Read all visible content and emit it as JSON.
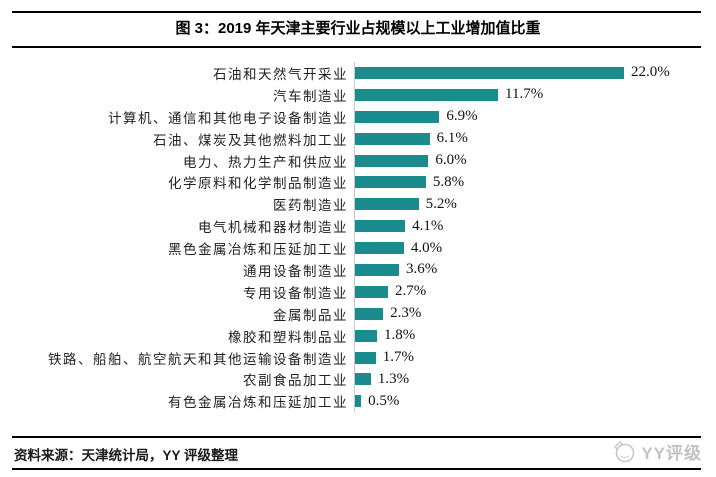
{
  "figure": {
    "title": "图 3：2019 年天津主要行业占规模以上工业增加值比重",
    "source": "资料来源：天津统计局，YY 评级整理",
    "logo_text": "YY评级"
  },
  "colors": {
    "bar": "#1b8c8d",
    "axis": "#c9c9c9",
    "rule": "#000000",
    "logo": "#c2c2c2"
  },
  "chart_data": {
    "type": "bar",
    "orientation": "horizontal",
    "title": "图 3：2019 年天津主要行业占规模以上工业增加值比重",
    "xlabel": "",
    "ylabel": "",
    "xlim": [
      0,
      25
    ],
    "grid": false,
    "legend": "none",
    "categories": [
      "石油和天然气开采业",
      "汽车制造业",
      "计算机、通信和其他电子设备制造业",
      "石油、煤炭及其他燃料加工业",
      "电力、热力生产和供应业",
      "化学原料和化学制品制造业",
      "医药制造业",
      "电气机械和器材制造业",
      "黑色金属冶炼和压延加工业",
      "通用设备制造业",
      "专用设备制造业",
      "金属制品业",
      "橡胶和塑料制品业",
      "铁路、船舶、航空航天和其他运输设备制造业",
      "农副食品加工业",
      "有色金属冶炼和压延加工业"
    ],
    "values": [
      22.0,
      11.7,
      6.9,
      6.1,
      6.0,
      5.8,
      5.2,
      4.1,
      4.0,
      3.6,
      2.7,
      2.3,
      1.8,
      1.7,
      1.3,
      0.5
    ],
    "value_labels": [
      "22.0%",
      "11.7%",
      "6.9%",
      "6.1%",
      "6.0%",
      "5.8%",
      "5.2%",
      "4.1%",
      "4.0%",
      "3.6%",
      "2.7%",
      "2.3%",
      "1.8%",
      "1.7%",
      "1.3%",
      "0.5%"
    ]
  }
}
